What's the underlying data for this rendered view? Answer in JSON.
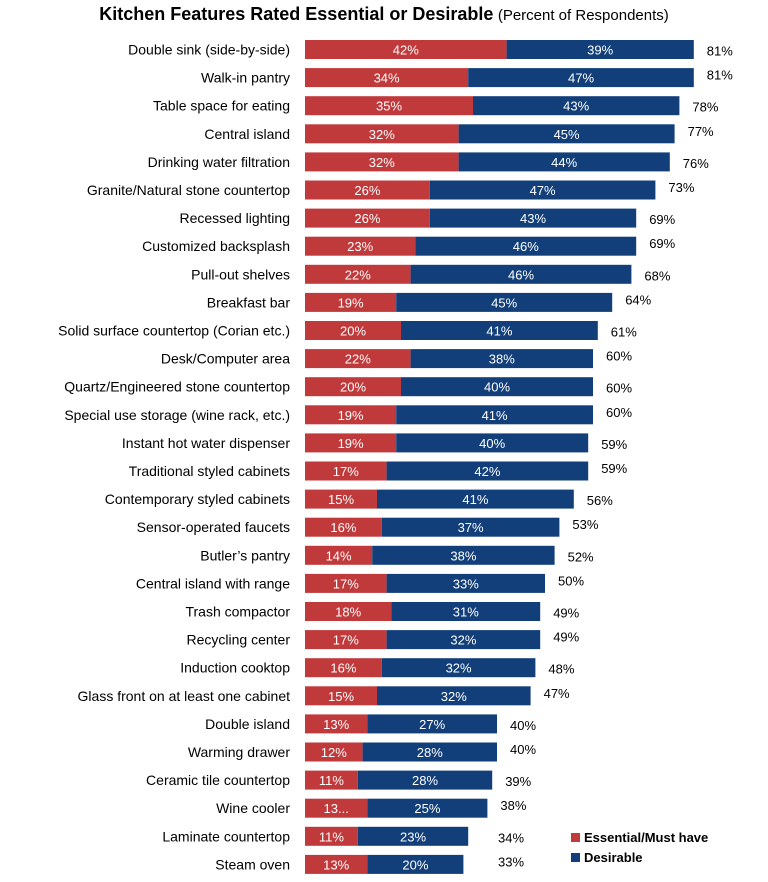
{
  "chart_data": {
    "type": "bar",
    "orientation": "horizontal",
    "stacked": true,
    "title": "Kitchen Features Rated Essential or Desirable",
    "subtitle": "(Percent of Respondents)",
    "xlabel": "",
    "ylabel": "",
    "xlim": [
      0,
      90
    ],
    "grid": false,
    "legend": "bottom-right",
    "colors": {
      "essential": "#c0393b",
      "desirable": "#123f7a"
    },
    "categories": [
      "Double sink (side-by-side)",
      "Walk-in pantry",
      "Table space for eating",
      "Central island",
      "Drinking water filtration",
      "Granite/Natural stone countertop",
      "Recessed lighting",
      "Customized backsplash",
      "Pull-out shelves",
      "Breakfast bar",
      "Solid surface countertop (Corian etc.)",
      "Desk/Computer area",
      "Quartz/Engineered stone  countertop",
      "Special use storage (wine rack, etc.)",
      "Instant hot water dispenser",
      "Traditional styled cabinets",
      "Contemporary styled cabinets",
      "Sensor-operated faucets",
      "Butler’s pantry",
      "Central island with range",
      "Trash compactor",
      "Recycling center",
      "Induction cooktop",
      "Glass front on at least one  cabinet",
      "Double island",
      "Warming drawer",
      "Ceramic tile countertop",
      "Wine cooler",
      "Laminate countertop",
      "Steam oven"
    ],
    "series": [
      {
        "name": "Essential/Must have",
        "values": [
          42,
          34,
          35,
          32,
          32,
          26,
          26,
          23,
          22,
          19,
          20,
          22,
          20,
          19,
          19,
          17,
          15,
          16,
          14,
          17,
          18,
          17,
          16,
          15,
          13,
          12,
          11,
          13,
          11,
          13
        ],
        "labels": [
          "42%",
          "34%",
          "35%",
          "32%",
          "32%",
          "26%",
          "26%",
          "23%",
          "22%",
          "19%",
          "20%",
          "22%",
          "20%",
          "19%",
          "19%",
          "17%",
          "15%",
          "16%",
          "14%",
          "17%",
          "18%",
          "17%",
          "16%",
          "15%",
          "13%",
          "12%",
          "11%",
          "13...",
          "11%",
          "13%"
        ]
      },
      {
        "name": "Desirable",
        "values": [
          39,
          47,
          43,
          45,
          44,
          47,
          43,
          46,
          46,
          45,
          41,
          38,
          40,
          41,
          40,
          42,
          41,
          37,
          38,
          33,
          31,
          32,
          32,
          32,
          27,
          28,
          28,
          25,
          23,
          20
        ],
        "labels": [
          "39%",
          "47%",
          "43%",
          "45%",
          "44%",
          "47%",
          "43%",
          "46%",
          "46%",
          "45%",
          "41%",
          "38%",
          "40%",
          "41%",
          "40%",
          "42%",
          "41%",
          "37%",
          "38%",
          "33%",
          "31%",
          "32%",
          "32%",
          "32%",
          "27%",
          "28%",
          "28%",
          "25%",
          "23%",
          "20%"
        ]
      }
    ],
    "totals": [
      81,
      81,
      78,
      77,
      76,
      73,
      69,
      69,
      68,
      64,
      61,
      60,
      60,
      60,
      59,
      59,
      56,
      53,
      52,
      50,
      49,
      49,
      48,
      47,
      40,
      40,
      39,
      38,
      34,
      33
    ],
    "total_labels": [
      "81%",
      "81%",
      "78%",
      "77%",
      "76%",
      "73%",
      "69%",
      "69%",
      "68%",
      "64%",
      "61%",
      "60%",
      "60%",
      "60%",
      "59%",
      "59%",
      "56%",
      "53%",
      "52%",
      "50%",
      "49%",
      "49%",
      "48%",
      "47%",
      "40%",
      "40%",
      "39%",
      "38%",
      "34%",
      "33%"
    ]
  }
}
